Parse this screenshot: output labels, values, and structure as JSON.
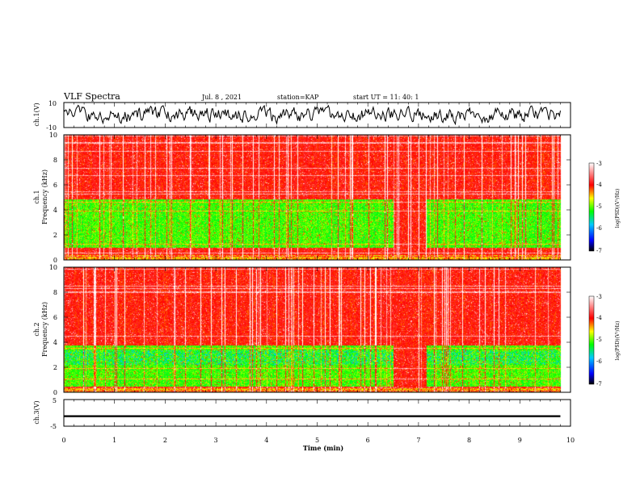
{
  "header": {
    "title": "VLF Spectra",
    "date": "Jul. 8 , 2021",
    "station": "station=KAP",
    "start": "start UT = 11: 40: 1"
  },
  "chart_data": [
    {
      "type": "line",
      "name": "ch1-waveform",
      "ylabel": "ch.1(V)",
      "ylim": [
        -10,
        10
      ],
      "ytick_labels": [
        "10",
        "-10"
      ],
      "xlim": [
        0,
        10
      ],
      "x_extent_min": [
        0,
        9.8
      ]
    },
    {
      "type": "heatmap",
      "name": "ch1-spectrogram",
      "ylabel_line1": "ch.1",
      "ylabel_line2": "Frequency (kHz)",
      "ylim": [
        0,
        10
      ],
      "ytick_labels": [
        "0",
        "2",
        "4",
        "6",
        "8",
        "10"
      ],
      "xlim": [
        0,
        10
      ],
      "data_extent_min": [
        0,
        9.8
      ],
      "features": {
        "green_band_khz": [
          1.0,
          4.9
        ],
        "red_above_khz": 4.9,
        "red_burst_min": [
          6.5,
          7.15
        ]
      },
      "colorbar": {
        "label": "log(PSD)(V²/Hz)",
        "range": [
          -7,
          -3
        ],
        "tick_labels": [
          "-3",
          "-4",
          "-5",
          "-6",
          "-7"
        ]
      }
    },
    {
      "type": "heatmap",
      "name": "ch2-spectrogram",
      "ylabel_line1": "ch.2",
      "ylabel_line2": "Frequency (kHz)",
      "ylim": [
        0,
        10
      ],
      "ytick_labels": [
        "0",
        "2",
        "4",
        "6",
        "8",
        "10"
      ],
      "xlim": [
        0,
        10
      ],
      "data_extent_min": [
        0,
        9.8
      ],
      "features": {
        "green_band_khz": [
          0.5,
          3.8
        ],
        "red_above_khz": 3.8,
        "red_burst_min": [
          6.5,
          7.15
        ]
      },
      "colorbar": {
        "label": "log(PSD)(V²/Hz)",
        "range": [
          -7,
          -3
        ],
        "tick_labels": [
          "-3",
          "-4",
          "-5",
          "-6",
          "-7"
        ]
      }
    },
    {
      "type": "line",
      "name": "ch3-waveform",
      "ylabel": "ch.3(V)",
      "ylim": [
        -5,
        5
      ],
      "ytick_labels": [
        "5",
        "-5"
      ],
      "xlim": [
        0,
        10
      ],
      "constant_value": [
        -1.6,
        -0.9
      ],
      "xlabel": "Time (min)",
      "xtick_labels": [
        "0",
        "1",
        "2",
        "3",
        "4",
        "5",
        "6",
        "7",
        "8",
        "9",
        "10"
      ]
    }
  ],
  "colors": {
    "colormap": [
      "#000000",
      "#0000ff",
      "#00c8ff",
      "#00ff00",
      "#ffff00",
      "#ff0000",
      "#ffffff"
    ],
    "trace": "#000000"
  }
}
